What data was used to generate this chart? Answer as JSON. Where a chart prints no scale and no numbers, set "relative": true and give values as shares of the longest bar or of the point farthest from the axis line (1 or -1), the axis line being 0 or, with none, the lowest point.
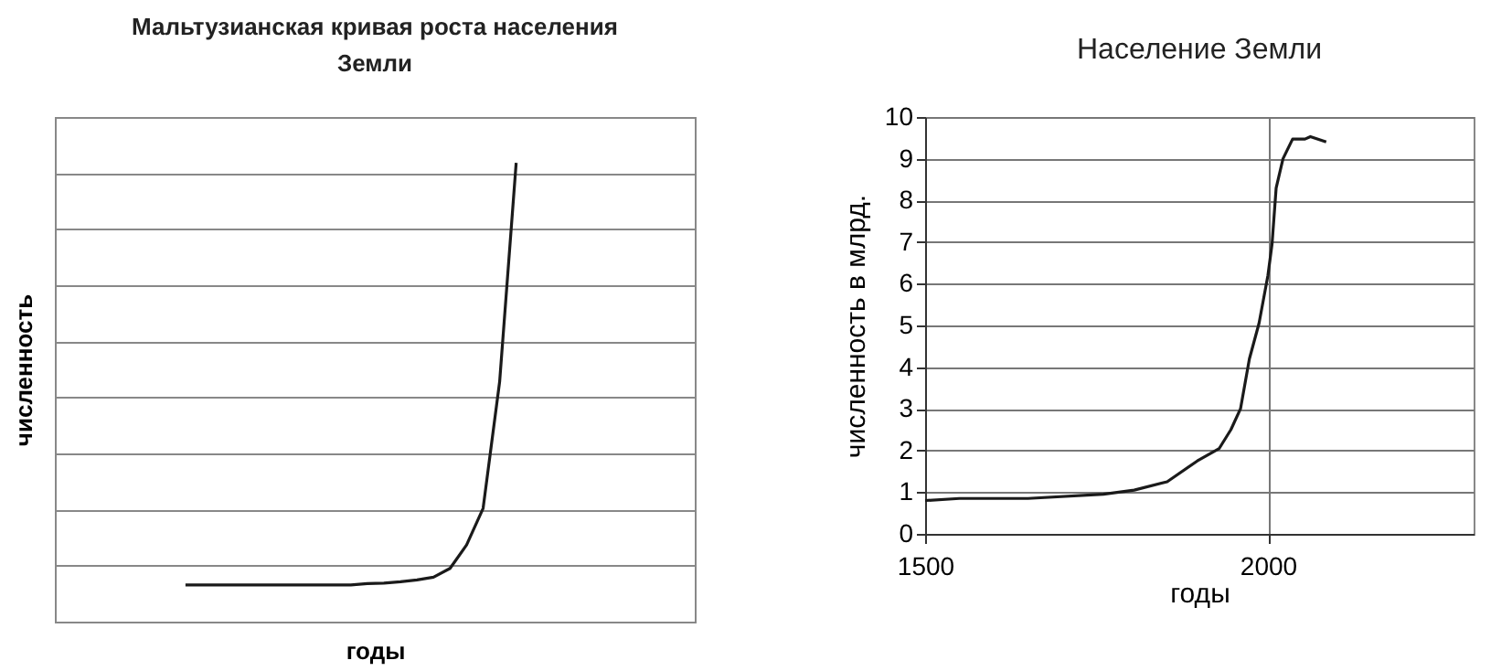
{
  "chart_data": [
    {
      "type": "line",
      "title": "Мальтузианская кривая роста населения Земли",
      "xlabel": "годы",
      "ylabel": "численность",
      "relative": true,
      "grid": true,
      "categories": [
        null,
        null,
        null,
        null,
        null,
        null,
        null,
        null,
        null,
        null,
        null,
        null,
        null,
        null,
        null,
        null,
        null,
        null,
        null,
        null,
        null
      ],
      "series": [
        {
          "color": "#1a1a1a",
          "values": [
            0.08,
            0.08,
            0.08,
            0.08,
            0.08,
            0.08,
            0.08,
            0.08,
            0.08,
            0.08,
            0.08,
            0.083,
            0.084,
            0.087,
            0.091,
            0.097,
            0.116,
            0.167,
            0.247,
            0.523,
            1
          ]
        }
      ]
    },
    {
      "type": "line",
      "title": "Население Земли",
      "xlabel": "годы",
      "ylabel": "численность в млрд.",
      "grid": true,
      "x": [
        1500,
        1550,
        1650,
        1760,
        1805,
        1853,
        1897,
        1929,
        1946,
        1960,
        1973,
        1987,
        2000,
        2006,
        2012,
        2022,
        2036,
        2054,
        2062,
        2085
      ],
      "xlim": [
        1500,
        2300
      ],
      "xticks": [
        1500,
        2000
      ],
      "ylim": [
        0,
        10
      ],
      "yticks": [
        0,
        1,
        2,
        3,
        4,
        5,
        6,
        7,
        8,
        9,
        10
      ],
      "series": [
        {
          "color": "#1a1a1a",
          "values": [
            0.8,
            0.85,
            0.85,
            0.95,
            1.05,
            1.25,
            1.75,
            2.05,
            2.5,
            3.0,
            4.2,
            5.05,
            6.2,
            6.95,
            8.3,
            9.0,
            9.47,
            9.47,
            9.53,
            9.4
          ]
        }
      ]
    }
  ]
}
